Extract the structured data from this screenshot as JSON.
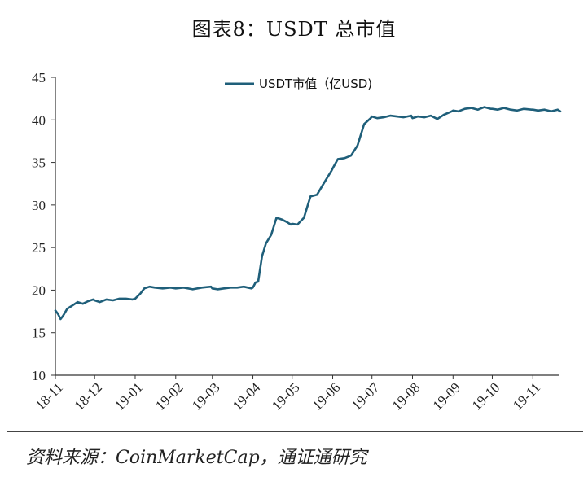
{
  "figure": {
    "title": "图表8：USDT 总市值",
    "source": "资料来源：CoinMarketCap，通证通研究"
  },
  "colors": {
    "line": "#1f5f7a",
    "axis": "#333333"
  },
  "chart_data": {
    "type": "line",
    "title": "图表8：USDT 总市值",
    "xlabel": "",
    "ylabel": "",
    "legend_position": "top-center",
    "grid": false,
    "ylim": [
      10,
      45
    ],
    "yticks": [
      10,
      15,
      20,
      25,
      30,
      35,
      40,
      45
    ],
    "xlim": [
      "2018-11-01",
      "2019-11-22"
    ],
    "xticks": [
      "18-11",
      "18-12",
      "19-01",
      "19-02",
      "19-03",
      "19-04",
      "19-05",
      "19-06",
      "19-07",
      "19-08",
      "19-09",
      "19-10",
      "19-11"
    ],
    "series": [
      {
        "name": "USDT市值（亿USD)",
        "x": [
          "2018-11-01",
          "2018-11-03",
          "2018-11-05",
          "2018-11-07",
          "2018-11-10",
          "2018-11-14",
          "2018-11-18",
          "2018-11-22",
          "2018-11-26",
          "2018-11-30",
          "2018-12-01",
          "2018-12-05",
          "2018-12-10",
          "2018-12-15",
          "2018-12-20",
          "2018-12-25",
          "2018-12-30",
          "2019-01-01",
          "2019-01-05",
          "2019-01-08",
          "2019-01-12",
          "2019-01-16",
          "2019-01-22",
          "2019-01-28",
          "2019-02-01",
          "2019-02-07",
          "2019-02-14",
          "2019-02-21",
          "2019-02-28",
          "2019-03-01",
          "2019-03-05",
          "2019-03-10",
          "2019-03-15",
          "2019-03-20",
          "2019-03-25",
          "2019-03-31",
          "2019-04-01",
          "2019-04-03",
          "2019-04-05",
          "2019-04-08",
          "2019-04-11",
          "2019-04-15",
          "2019-04-19",
          "2019-04-23",
          "2019-04-27",
          "2019-04-30",
          "2019-05-01",
          "2019-05-05",
          "2019-05-10",
          "2019-05-15",
          "2019-05-20",
          "2019-05-25",
          "2019-05-31",
          "2019-06-01",
          "2019-06-05",
          "2019-06-10",
          "2019-06-15",
          "2019-06-20",
          "2019-06-25",
          "2019-06-30",
          "2019-07-01",
          "2019-07-05",
          "2019-07-10",
          "2019-07-15",
          "2019-07-20",
          "2019-07-25",
          "2019-07-31",
          "2019-08-01",
          "2019-08-05",
          "2019-08-10",
          "2019-08-15",
          "2019-08-20",
          "2019-08-25",
          "2019-08-31",
          "2019-09-01",
          "2019-09-05",
          "2019-09-10",
          "2019-09-15",
          "2019-09-20",
          "2019-09-25",
          "2019-09-30",
          "2019-10-01",
          "2019-10-05",
          "2019-10-10",
          "2019-10-15",
          "2019-10-20",
          "2019-10-25",
          "2019-10-31",
          "2019-11-01",
          "2019-11-05",
          "2019-11-10",
          "2019-11-15",
          "2019-11-20",
          "2019-11-22"
        ],
        "y": [
          17.6,
          17.2,
          16.6,
          17.0,
          17.8,
          18.2,
          18.6,
          18.4,
          18.7,
          18.9,
          18.8,
          18.6,
          18.9,
          18.8,
          19.0,
          19.0,
          18.9,
          19.0,
          19.6,
          20.2,
          20.4,
          20.3,
          20.2,
          20.3,
          20.2,
          20.3,
          20.1,
          20.3,
          20.4,
          20.2,
          20.1,
          20.2,
          20.3,
          20.3,
          20.4,
          20.2,
          20.3,
          20.9,
          21.0,
          24.0,
          25.5,
          26.5,
          28.5,
          28.3,
          28.0,
          27.7,
          27.8,
          27.7,
          28.5,
          31.0,
          31.2,
          32.5,
          34.0,
          34.3,
          35.4,
          35.5,
          35.8,
          37.0,
          39.5,
          40.2,
          40.4,
          40.2,
          40.3,
          40.5,
          40.4,
          40.3,
          40.5,
          40.2,
          40.4,
          40.3,
          40.5,
          40.1,
          40.6,
          41.0,
          41.1,
          41.0,
          41.3,
          41.4,
          41.2,
          41.5,
          41.3,
          41.3,
          41.2,
          41.4,
          41.2,
          41.1,
          41.3,
          41.2,
          41.2,
          41.1,
          41.2,
          41.0,
          41.2,
          41.0
        ]
      }
    ]
  }
}
